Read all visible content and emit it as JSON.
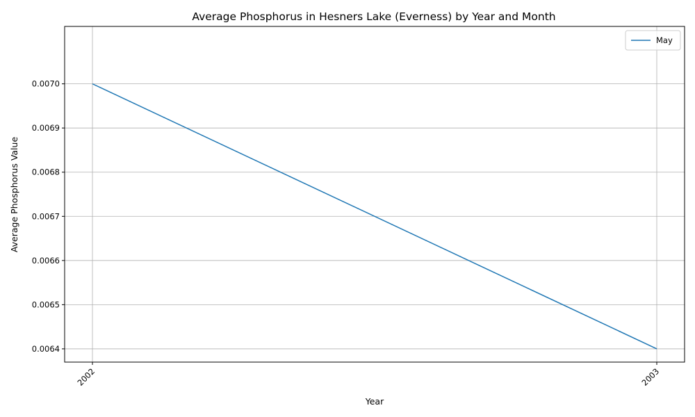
{
  "chart_data": {
    "type": "line",
    "title": "Average Phosphorus in Hesners Lake (Everness) by Year and Month",
    "xlabel": "Year",
    "ylabel": "Average Phosphorus Value",
    "x": [
      "2002",
      "2003"
    ],
    "series": [
      {
        "name": "May",
        "values": [
          0.007,
          0.0064
        ],
        "color": "#1f77b4"
      }
    ],
    "yticks": [
      "0.0064",
      "0.0065",
      "0.0066",
      "0.0067",
      "0.0068",
      "0.0069",
      "0.0070"
    ],
    "ylim": [
      0.00637,
      0.00713
    ],
    "grid": true,
    "legend_position": "top-right"
  }
}
